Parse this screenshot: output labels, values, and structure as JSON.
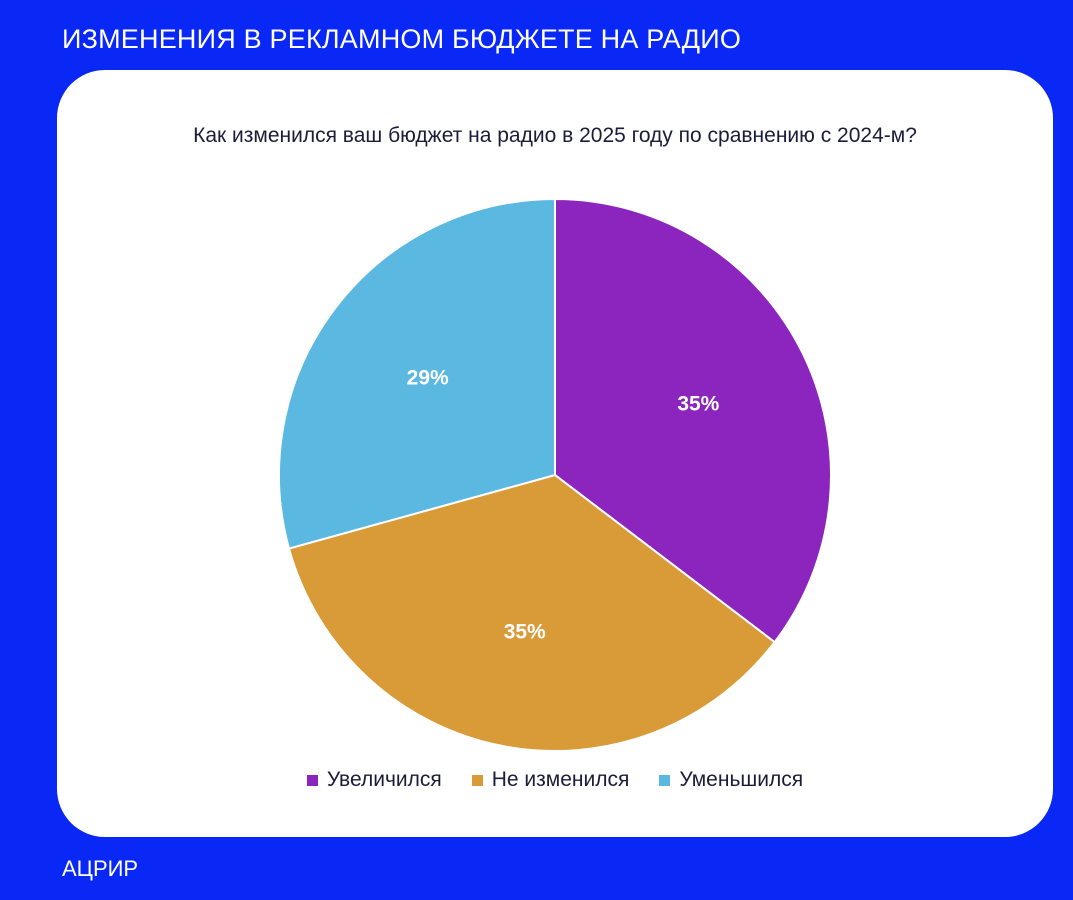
{
  "slide": {
    "title": "ИЗМЕНЕНИЯ В РЕКЛАМНОМ БЮДЖЕТЕ НА РАДИО",
    "source": "АЦРИР",
    "background_color": "#0a28f5"
  },
  "chart_data": {
    "type": "pie",
    "title": "Как изменился ваш бюджет на радио в 2025 году по сравнению с 2024-м?",
    "legend_position": "bottom",
    "start": "12 o'clock, clockwise",
    "slices": [
      {
        "label": "Увеличился",
        "value": 35,
        "display": "35%",
        "color": "#8b25bd"
      },
      {
        "label": "Не изменился",
        "value": 35,
        "display": "35%",
        "color": "#d99a38"
      },
      {
        "label": "Уменьшился",
        "value": 29,
        "display": "29%",
        "color": "#5bb8e0"
      }
    ]
  }
}
